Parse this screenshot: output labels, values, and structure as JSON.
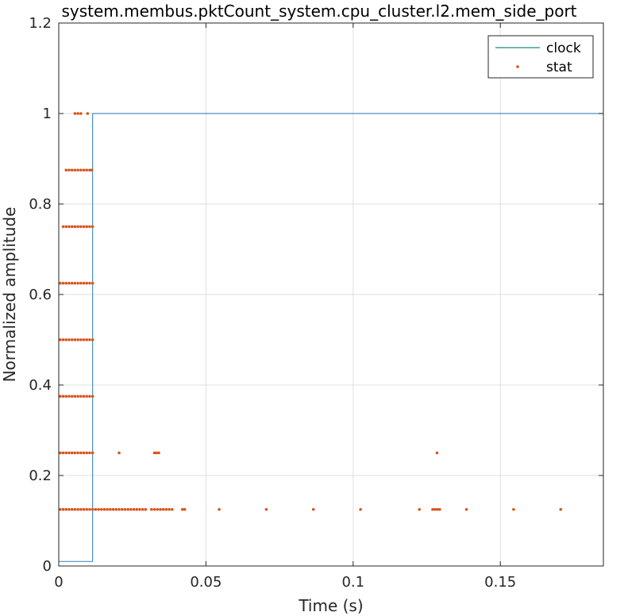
{
  "chart_data": {
    "type": "line",
    "title": "system.membus.pktCount_system.cpu_cluster.l2.mem_side_port",
    "xlabel": "Time (s)",
    "ylabel": "Normalized amplitude",
    "xlim": [
      0,
      0.185
    ],
    "ylim": [
      0,
      1.2
    ],
    "grid": true,
    "legend_position": "top-right",
    "x_ticks": [
      {
        "value": 0,
        "label": "0"
      },
      {
        "value": 0.05,
        "label": "0.05"
      },
      {
        "value": 0.1,
        "label": "0.1"
      },
      {
        "value": 0.15,
        "label": "0.15"
      }
    ],
    "y_ticks": [
      {
        "value": 0,
        "label": "0"
      },
      {
        "value": 0.2,
        "label": "0.2"
      },
      {
        "value": 0.4,
        "label": "0.4"
      },
      {
        "value": 0.6,
        "label": "0.6"
      },
      {
        "value": 0.8,
        "label": "0.8"
      },
      {
        "value": 1,
        "label": "1"
      },
      {
        "value": 1.2,
        "label": "1.2"
      }
    ],
    "series": [
      {
        "name": "clock",
        "type": "line",
        "color": "#4a90c8",
        "legend_color": "#1a8a7a",
        "x": [
          0,
          0.0115,
          0.0115,
          0.185
        ],
        "y": [
          0.01,
          0.01,
          1,
          1
        ]
      },
      {
        "name": "stat",
        "type": "scatter",
        "color": "#d95319",
        "points": [
          [
            0.0055,
            1
          ],
          [
            0.0065,
            1
          ],
          [
            0.0075,
            1
          ],
          [
            0.0098,
            1
          ],
          [
            0.0025,
            0.875
          ],
          [
            0.0035,
            0.875
          ],
          [
            0.0045,
            0.875
          ],
          [
            0.0055,
            0.875
          ],
          [
            0.0065,
            0.875
          ],
          [
            0.0075,
            0.875
          ],
          [
            0.0085,
            0.875
          ],
          [
            0.0095,
            0.875
          ],
          [
            0.0105,
            0.875
          ],
          [
            0.0112,
            0.875
          ],
          [
            0.0015,
            0.75
          ],
          [
            0.0025,
            0.75
          ],
          [
            0.0035,
            0.75
          ],
          [
            0.0045,
            0.75
          ],
          [
            0.0055,
            0.75
          ],
          [
            0.0065,
            0.75
          ],
          [
            0.0075,
            0.75
          ],
          [
            0.0085,
            0.75
          ],
          [
            0.0095,
            0.75
          ],
          [
            0.0105,
            0.75
          ],
          [
            0.0115,
            0.75
          ],
          [
            0.0005,
            0.625
          ],
          [
            0.0015,
            0.625
          ],
          [
            0.0025,
            0.625
          ],
          [
            0.0035,
            0.625
          ],
          [
            0.0045,
            0.625
          ],
          [
            0.0055,
            0.625
          ],
          [
            0.0065,
            0.625
          ],
          [
            0.0075,
            0.625
          ],
          [
            0.0085,
            0.625
          ],
          [
            0.0095,
            0.625
          ],
          [
            0.0105,
            0.625
          ],
          [
            0.0115,
            0.625
          ],
          [
            0.0005,
            0.5
          ],
          [
            0.0015,
            0.5
          ],
          [
            0.0025,
            0.5
          ],
          [
            0.0035,
            0.5
          ],
          [
            0.0045,
            0.5
          ],
          [
            0.0055,
            0.5
          ],
          [
            0.0065,
            0.5
          ],
          [
            0.0075,
            0.5
          ],
          [
            0.0085,
            0.5
          ],
          [
            0.0095,
            0.5
          ],
          [
            0.0105,
            0.5
          ],
          [
            0.0115,
            0.5
          ],
          [
            0.0005,
            0.375
          ],
          [
            0.0015,
            0.375
          ],
          [
            0.0025,
            0.375
          ],
          [
            0.0035,
            0.375
          ],
          [
            0.0045,
            0.375
          ],
          [
            0.0055,
            0.375
          ],
          [
            0.0065,
            0.375
          ],
          [
            0.0075,
            0.375
          ],
          [
            0.0085,
            0.375
          ],
          [
            0.0095,
            0.375
          ],
          [
            0.0105,
            0.375
          ],
          [
            0.0115,
            0.375
          ],
          [
            0.0005,
            0.25
          ],
          [
            0.0015,
            0.25
          ],
          [
            0.0025,
            0.25
          ],
          [
            0.0035,
            0.25
          ],
          [
            0.0045,
            0.25
          ],
          [
            0.0055,
            0.25
          ],
          [
            0.0065,
            0.25
          ],
          [
            0.0075,
            0.25
          ],
          [
            0.0085,
            0.25
          ],
          [
            0.0095,
            0.25
          ],
          [
            0.0105,
            0.25
          ],
          [
            0.0115,
            0.25
          ],
          [
            0.0205,
            0.25
          ],
          [
            0.0325,
            0.25
          ],
          [
            0.0332,
            0.25
          ],
          [
            0.034,
            0.25
          ],
          [
            0.1285,
            0.25
          ],
          [
            0.0005,
            0.125
          ],
          [
            0.0015,
            0.125
          ],
          [
            0.0025,
            0.125
          ],
          [
            0.0035,
            0.125
          ],
          [
            0.0045,
            0.125
          ],
          [
            0.0055,
            0.125
          ],
          [
            0.0065,
            0.125
          ],
          [
            0.0075,
            0.125
          ],
          [
            0.0085,
            0.125
          ],
          [
            0.0095,
            0.125
          ],
          [
            0.0105,
            0.125
          ],
          [
            0.0115,
            0.125
          ],
          [
            0.0125,
            0.125
          ],
          [
            0.0135,
            0.125
          ],
          [
            0.0145,
            0.125
          ],
          [
            0.0155,
            0.125
          ],
          [
            0.0165,
            0.125
          ],
          [
            0.0175,
            0.125
          ],
          [
            0.0185,
            0.125
          ],
          [
            0.0195,
            0.125
          ],
          [
            0.0205,
            0.125
          ],
          [
            0.0215,
            0.125
          ],
          [
            0.0225,
            0.125
          ],
          [
            0.0235,
            0.125
          ],
          [
            0.0245,
            0.125
          ],
          [
            0.0255,
            0.125
          ],
          [
            0.0265,
            0.125
          ],
          [
            0.0275,
            0.125
          ],
          [
            0.0285,
            0.125
          ],
          [
            0.0295,
            0.125
          ],
          [
            0.0315,
            0.125
          ],
          [
            0.0325,
            0.125
          ],
          [
            0.0335,
            0.125
          ],
          [
            0.0345,
            0.125
          ],
          [
            0.0355,
            0.125
          ],
          [
            0.0365,
            0.125
          ],
          [
            0.0375,
            0.125
          ],
          [
            0.0385,
            0.125
          ],
          [
            0.042,
            0.125
          ],
          [
            0.0428,
            0.125
          ],
          [
            0.0545,
            0.125
          ],
          [
            0.0705,
            0.125
          ],
          [
            0.0865,
            0.125
          ],
          [
            0.1025,
            0.125
          ],
          [
            0.1225,
            0.125
          ],
          [
            0.127,
            0.125
          ],
          [
            0.1278,
            0.125
          ],
          [
            0.1286,
            0.125
          ],
          [
            0.1294,
            0.125
          ],
          [
            0.1385,
            0.125
          ],
          [
            0.1545,
            0.125
          ],
          [
            0.1705,
            0.125
          ]
        ]
      }
    ]
  }
}
